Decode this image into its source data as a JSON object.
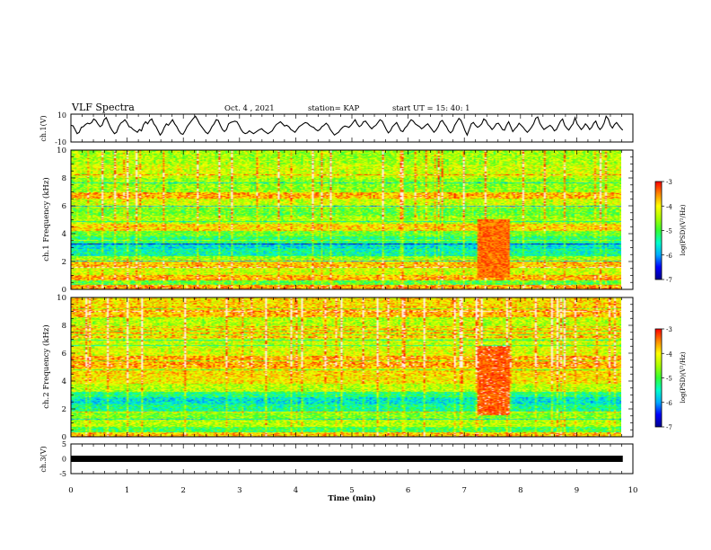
{
  "header": {
    "title": "VLF Spectra",
    "date": "Oct. 4 , 2021",
    "station": "station= KAP",
    "start": "start UT =  15: 40: 1"
  },
  "chart_data": [
    {
      "type": "line",
      "name": "ch1-waveform",
      "ylabel": "ch.1(V)",
      "ylim": [
        -10,
        10
      ],
      "yticks": [
        "10",
        "-10"
      ],
      "xlim": [
        0,
        10
      ],
      "values": [
        2,
        1.6,
        -1,
        -4,
        -3,
        0.5,
        1,
        2.5,
        3.5,
        3,
        4,
        6.5,
        5.5,
        3,
        1,
        2,
        6,
        7.5,
        4,
        0.5,
        -2,
        -4,
        -3,
        1,
        3.5,
        4.5,
        6,
        4,
        1,
        0.5,
        -1,
        -2,
        -3,
        -1,
        -2,
        2.5,
        4.5,
        3,
        5.5,
        6.5,
        3,
        1,
        -2,
        -5,
        -3,
        0.5,
        3,
        2,
        4,
        6,
        3,
        1,
        -2,
        -4,
        -4.5,
        -2,
        1,
        3,
        5,
        7,
        8.5,
        6,
        3,
        1,
        -1,
        -3,
        -4,
        -2,
        1,
        3,
        6,
        5.5,
        2,
        -1,
        -2.5,
        -1,
        3,
        4,
        4.5,
        5,
        4.5,
        2,
        -1,
        -3,
        -4,
        -3.5,
        -2,
        -3,
        -4,
        -3,
        -2,
        -1,
        -0.5,
        -2,
        -3,
        -4,
        -3,
        -2,
        0.5,
        2.5,
        3.5,
        4.5,
        3,
        1.5,
        2,
        1,
        -1,
        -2,
        -3,
        -1,
        1,
        2,
        3,
        4,
        3.5,
        2,
        1,
        0.5,
        -1,
        -2,
        -1,
        1,
        2,
        3.5,
        2,
        -1,
        -3,
        -5,
        -4,
        -3,
        -1,
        0.5,
        1.5,
        1,
        0.5,
        2,
        4,
        6,
        3,
        1,
        2,
        4.5,
        5,
        3,
        1,
        -0.5,
        1,
        2,
        4,
        6,
        5,
        2,
        -1,
        -3.5,
        -2,
        1,
        2.5,
        4,
        1,
        -2,
        -2.5,
        0,
        1.5,
        4,
        6,
        5,
        3,
        2,
        1,
        -0.5,
        0.5,
        2,
        3,
        1,
        -1,
        -3,
        -1.5,
        1,
        4.5,
        5.5,
        3,
        1,
        -2,
        -3.5,
        -2,
        2,
        4.5,
        7,
        5.5,
        2,
        -2,
        -5,
        -1,
        3,
        4,
        2,
        0.5,
        1.5,
        3,
        6.5,
        5.5,
        2.5,
        1,
        -1,
        0.5,
        3,
        3.5,
        1.5,
        -1,
        -1.5,
        2,
        4.5,
        1,
        -2.5,
        -0.5,
        1,
        3.5,
        2,
        0.5,
        -1.5,
        -3,
        -1.5,
        0.5,
        3,
        7,
        8,
        3.5,
        1,
        -1,
        0,
        1,
        2,
        0.5,
        -2,
        -1,
        2,
        5,
        6.5,
        2,
        0,
        -1.5,
        1,
        3,
        7.5,
        3,
        1,
        -1,
        0.5,
        3,
        1.5,
        -1,
        0.5,
        3.5,
        5,
        1,
        -1,
        0.5,
        3.5,
        8.5,
        6.5,
        2,
        0,
        2.5,
        4,
        2,
        0,
        -1.5
      ]
    },
    {
      "type": "heatmap",
      "name": "ch1-spectrogram",
      "ylabel": "ch.1 Frequency (kHz)",
      "ylim": [
        0,
        10
      ],
      "yticks": [
        "0",
        "2",
        "4",
        "6",
        "8",
        "10"
      ],
      "xlim": [
        0,
        10
      ],
      "colorbar": {
        "label": "log(PSD)(V²/Hz)",
        "range": [
          -7,
          -3
        ],
        "ticks": [
          "-3",
          "-4",
          "-5",
          "-6",
          "-7"
        ]
      }
    },
    {
      "type": "heatmap",
      "name": "ch2-spectrogram",
      "ylabel": "ch.2 Frequency (kHz)",
      "ylim": [
        0,
        10
      ],
      "yticks": [
        "0",
        "2",
        "4",
        "6",
        "8",
        "10"
      ],
      "xlim": [
        0,
        10
      ],
      "colorbar": {
        "label": "log(PSD)(V²/Hz)",
        "range": [
          -7,
          -3
        ],
        "ticks": [
          "-3",
          "-4",
          "-5",
          "-6",
          "-7"
        ]
      }
    },
    {
      "type": "line",
      "name": "ch3-waveform",
      "ylabel": "ch.3(V)",
      "ylim": [
        -5,
        5
      ],
      "yticks": [
        "5",
        "0",
        "-5"
      ],
      "level": [
        -0.6,
        0.6
      ],
      "xlim": [
        0,
        10
      ]
    }
  ],
  "xaxis": {
    "label": "Time (min)",
    "ticks": [
      "0",
      "1",
      "2",
      "3",
      "4",
      "5",
      "6",
      "7",
      "8",
      "9",
      "10"
    ]
  },
  "colors": {
    "spectrum": [
      "#00008f",
      "#0000ff",
      "#00aaff",
      "#00ffcc",
      "#33ff33",
      "#aaff00",
      "#ffff00",
      "#ff8800",
      "#ff0000",
      "#ffffff"
    ],
    "waveform": "#000000"
  },
  "spectrogram_profiles": {
    "ch1": {
      "bands": [
        [
          0.0,
          0.3,
          -3.6
        ],
        [
          0.3,
          0.6,
          -4.9
        ],
        [
          0.6,
          1.0,
          -3.7
        ],
        [
          1.0,
          1.5,
          -4.3
        ],
        [
          1.5,
          2.0,
          -3.8
        ],
        [
          2.0,
          2.4,
          -4.6
        ],
        [
          2.4,
          2.9,
          -5.4
        ],
        [
          2.9,
          3.3,
          -5.6
        ],
        [
          3.3,
          3.8,
          -5.2
        ],
        [
          3.8,
          4.2,
          -4.8
        ],
        [
          4.2,
          4.7,
          -3.9
        ],
        [
          4.7,
          5.3,
          -4.5
        ],
        [
          5.3,
          6.0,
          -4.8
        ],
        [
          6.0,
          6.5,
          -4.3
        ],
        [
          6.5,
          7.0,
          -3.7
        ],
        [
          7.0,
          8.0,
          -4.6
        ],
        [
          8.0,
          9.0,
          -4.3
        ],
        [
          9.0,
          10.0,
          -4.5
        ]
      ],
      "burst": {
        "t": [
          7.25,
          7.85
        ],
        "f": [
          0.8,
          5.0
        ],
        "level": -3.4
      }
    },
    "ch2": {
      "bands": [
        [
          0.0,
          0.3,
          -3.8
        ],
        [
          0.3,
          0.7,
          -5.0
        ],
        [
          0.7,
          1.2,
          -4.4
        ],
        [
          1.2,
          1.8,
          -4.7
        ],
        [
          1.8,
          2.3,
          -5.3
        ],
        [
          2.3,
          2.8,
          -5.6
        ],
        [
          2.8,
          3.2,
          -5.2
        ],
        [
          3.2,
          3.8,
          -4.4
        ],
        [
          3.8,
          4.4,
          -4.0
        ],
        [
          4.4,
          5.0,
          -3.9
        ],
        [
          5.0,
          5.8,
          -3.6
        ],
        [
          5.8,
          6.4,
          -4.2
        ],
        [
          6.4,
          7.2,
          -4.3
        ],
        [
          7.2,
          7.8,
          -3.8
        ],
        [
          7.8,
          8.6,
          -4.4
        ],
        [
          8.6,
          9.4,
          -3.7
        ],
        [
          9.4,
          10.0,
          -3.9
        ]
      ],
      "burst": {
        "t": [
          7.25,
          7.85
        ],
        "f": [
          1.5,
          6.5
        ],
        "level": -3.3
      }
    }
  }
}
